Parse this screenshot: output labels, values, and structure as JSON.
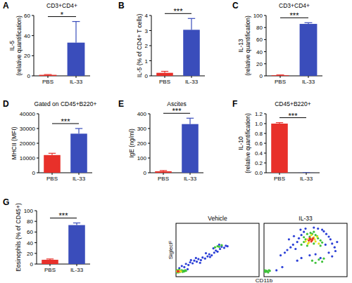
{
  "chart_data": [
    {
      "type": "bar",
      "panel": "A",
      "title": "CD3+CD4+",
      "y_label": [
        "IL-5",
        "(relative quantification)"
      ],
      "categories": [
        "PBS",
        "IL-33"
      ],
      "values": [
        1,
        33
      ],
      "errors": [
        0.3,
        21
      ],
      "colors": [
        "#e8302a",
        "#3a4dbb"
      ],
      "ylim": [
        0,
        60
      ],
      "yticks": [
        0,
        20,
        40,
        60
      ],
      "significance": "*"
    },
    {
      "type": "bar",
      "panel": "B",
      "y_label": [
        "IL-5 (% of CD4+ T cells)"
      ],
      "categories": [
        "PBS",
        "IL-33"
      ],
      "values": [
        0.2,
        3.05
      ],
      "errors": [
        0.1,
        0.75
      ],
      "colors": [
        "#e8302a",
        "#3a4dbb"
      ],
      "ylim": [
        0,
        4
      ],
      "yticks": [
        0,
        1,
        2,
        3,
        4
      ],
      "significance": "***"
    },
    {
      "type": "bar",
      "panel": "C",
      "title": "CD3+CD4+",
      "y_label": [
        "IL-13",
        "(relative quantification)"
      ],
      "categories": [
        "PBS",
        "IL-33"
      ],
      "values": [
        1,
        86
      ],
      "errors": [
        0.5,
        2
      ],
      "colors": [
        "#e8302a",
        "#3a4dbb"
      ],
      "ylim": [
        0,
        100
      ],
      "yticks": [
        0,
        20,
        40,
        60,
        80,
        100
      ],
      "significance": "***"
    },
    {
      "type": "bar",
      "panel": "D",
      "title": "Gated on CD45+B220+",
      "y_label": [
        "MHCII (MFI)"
      ],
      "categories": [
        "PBS",
        "IL-33"
      ],
      "values": [
        12000,
        26500
      ],
      "errors": [
        1200,
        3500
      ],
      "colors": [
        "#e8302a",
        "#3a4dbb"
      ],
      "ylim": [
        0,
        40000
      ],
      "yticks": [
        0,
        10000,
        20000,
        30000,
        40000
      ],
      "significance": "***"
    },
    {
      "type": "bar",
      "panel": "E",
      "title": "Ascites",
      "y_label": [
        "IgE (ng/ml)"
      ],
      "categories": [
        "PBS",
        "IL-33"
      ],
      "values": [
        10,
        330
      ],
      "errors": [
        5,
        40
      ],
      "colors": [
        "#e8302a",
        "#3a4dbb"
      ],
      "ylim": [
        0,
        400
      ],
      "yticks": [
        0,
        100,
        200,
        300,
        400
      ],
      "significance": "***"
    },
    {
      "type": "bar",
      "panel": "F",
      "title": "CD45+B220+",
      "y_label": [
        "IL-10",
        "(relative quantification)"
      ],
      "categories": [
        "PBS",
        "IL-33"
      ],
      "values": [
        1.0,
        0.002
      ],
      "errors": [
        0.02,
        0.001
      ],
      "colors": [
        "#e8302a",
        "#3a4dbb"
      ],
      "ylim": [
        0,
        1.2
      ],
      "yticks": [
        {
          "value": 0,
          "label": "0.0"
        },
        0.2,
        0.4,
        0.6,
        0.8,
        {
          "value": 1,
          "label": "1.0"
        },
        1.2
      ],
      "significance": "***"
    },
    {
      "type": "bar",
      "panel": "G",
      "y_label": [
        "Eosinophils (% of CD45+)"
      ],
      "categories": [
        "PBS",
        "IL-33"
      ],
      "values": [
        8,
        73
      ],
      "errors": [
        1.5,
        4
      ],
      "colors": [
        "#e8302a",
        "#3a4dbb"
      ],
      "ylim": [
        0,
        100
      ],
      "yticks": [
        0,
        20,
        40,
        60,
        80,
        100
      ],
      "significance": "***"
    },
    {
      "type": "scatter",
      "title": "Vehicle",
      "y_label": "SiglecF",
      "xlim": [
        0,
        100
      ],
      "ylim": [
        0,
        100
      ],
      "tick_labels": false,
      "series": [
        {
          "color": "#2b3fd6",
          "x": [
            4,
            7,
            10,
            12,
            15,
            17,
            20,
            22,
            25,
            27,
            30,
            32,
            35,
            38,
            40,
            43,
            46,
            48,
            50,
            53,
            55,
            58,
            60,
            62,
            24,
            29,
            36,
            41,
            18,
            14,
            45,
            52
          ],
          "values": [
            16,
            20,
            18,
            24,
            22,
            27,
            25,
            30,
            28,
            33,
            31,
            36,
            34,
            38,
            42,
            40,
            45,
            49,
            47,
            52,
            56,
            54,
            58,
            57,
            35,
            26,
            44,
            37,
            31,
            14,
            53,
            60
          ]
        },
        {
          "color": "#3fc23a",
          "x": [
            0,
            1,
            1,
            2,
            2,
            3,
            3,
            4,
            4,
            5,
            5,
            6,
            7,
            8,
            9,
            10,
            11,
            12,
            47,
            50,
            52,
            55
          ],
          "values": [
            10,
            8,
            12,
            9,
            11,
            8,
            12,
            10,
            13,
            9,
            11,
            10,
            12,
            9,
            11,
            10,
            12,
            11,
            55,
            57,
            56,
            59
          ]
        },
        {
          "color": "#e6e021",
          "x": [
            1,
            2,
            3,
            4,
            5,
            6
          ],
          "values": [
            10,
            10,
            9,
            11,
            10,
            10
          ]
        },
        {
          "color": "#e8302a",
          "x": [
            2,
            3
          ],
          "values": [
            10,
            10
          ]
        }
      ]
    },
    {
      "type": "scatter",
      "title": "IL-33",
      "x_label": "CD11b",
      "xlim": [
        0,
        100
      ],
      "ylim": [
        0,
        100
      ],
      "tick_labels": false,
      "series": [
        {
          "color": "#2b3fd6",
          "x": [
            20,
            25,
            28,
            32,
            35,
            38,
            40,
            42,
            45,
            48,
            72,
            75,
            78,
            80,
            82,
            85,
            30,
            36,
            44,
            50,
            60,
            65,
            70,
            74,
            78,
            82,
            55,
            62,
            68,
            40,
            45,
            88,
            86,
            15,
            22
          ],
          "values": [
            40,
            45,
            50,
            55,
            60,
            52,
            65,
            72,
            78,
            84,
            85,
            80,
            75,
            70,
            62,
            55,
            70,
            76,
            88,
            90,
            92,
            90,
            88,
            60,
            45,
            38,
            40,
            42,
            35,
            30,
            35,
            65,
            48,
            12,
            18
          ]
        },
        {
          "color": "#3fc23a",
          "x": [
            45,
            48,
            50,
            52,
            55,
            58,
            60,
            62,
            65,
            68,
            70,
            48,
            52,
            56,
            60,
            64,
            68,
            58,
            62,
            66,
            70,
            72,
            0,
            1,
            2,
            3,
            4,
            5,
            6,
            7
          ],
          "values": [
            60,
            65,
            70,
            58,
            75,
            80,
            62,
            78,
            72,
            68,
            64,
            74,
            80,
            82,
            84,
            76,
            58,
            30,
            26,
            32,
            28,
            34,
            10,
            12,
            9,
            11,
            10,
            8,
            12,
            11
          ]
        },
        {
          "color": "#e6e021",
          "x": [
            50,
            52,
            54,
            56,
            58,
            60,
            62,
            53,
            57,
            61,
            64,
            66
          ],
          "values": [
            66,
            70,
            64,
            72,
            68,
            74,
            66,
            62,
            78,
            70,
            75,
            62
          ]
        },
        {
          "color": "#e8302a",
          "x": [
            54,
            56,
            58,
            57,
            55,
            59
          ],
          "values": [
            68,
            70,
            69,
            66,
            72,
            72
          ]
        }
      ]
    }
  ]
}
